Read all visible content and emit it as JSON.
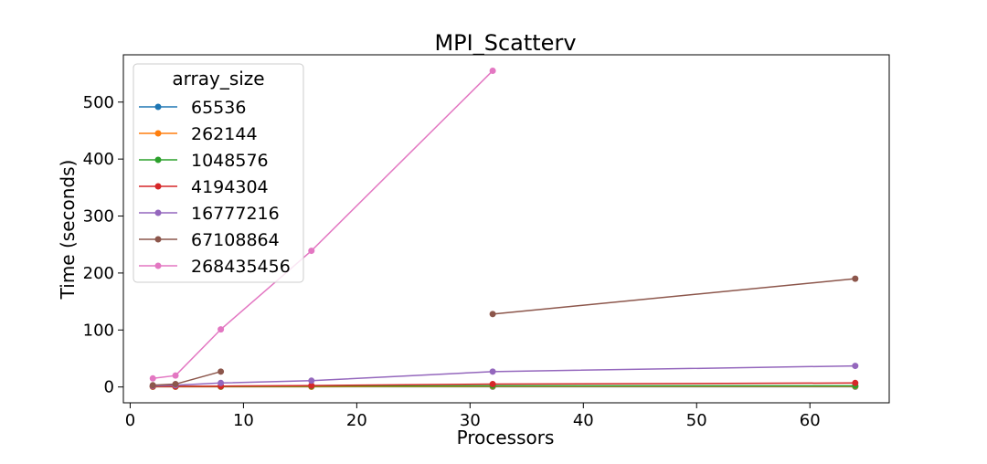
{
  "chart_data": {
    "type": "line",
    "title": "MPI_Scatterv",
    "xlabel": "Processors",
    "ylabel": "Time (seconds)",
    "xlim": [
      -0.6,
      67
    ],
    "ylim": [
      -27.8,
      583
    ],
    "xticks": [
      0,
      10,
      20,
      30,
      40,
      50,
      60
    ],
    "yticks": [
      0,
      100,
      200,
      300,
      400,
      500
    ],
    "grid": false,
    "legend": {
      "title": "array_size",
      "placement": "top-left"
    },
    "series": [
      {
        "name": "65536",
        "color": "#1f77b4",
        "points": [
          [
            2,
            0.5
          ],
          [
            4,
            0.5
          ],
          [
            8,
            0.5
          ],
          [
            16,
            0.5
          ],
          [
            32,
            0.5
          ],
          [
            64,
            0.5
          ]
        ]
      },
      {
        "name": "262144",
        "color": "#ff7f0e",
        "points": [
          [
            2,
            0.5
          ],
          [
            4,
            0.5
          ],
          [
            8,
            0.5
          ],
          [
            16,
            0.5
          ],
          [
            32,
            1
          ],
          [
            64,
            1
          ]
        ]
      },
      {
        "name": "1048576",
        "color": "#2ca02c",
        "points": [
          [
            2,
            1
          ],
          [
            4,
            1
          ],
          [
            8,
            1
          ],
          [
            16,
            1.5
          ],
          [
            32,
            2
          ],
          [
            64,
            2
          ]
        ]
      },
      {
        "name": "4194304",
        "color": "#d62728",
        "points": [
          [
            2,
            1
          ],
          [
            4,
            1
          ],
          [
            8,
            1.5
          ],
          [
            16,
            2.5
          ],
          [
            32,
            5
          ],
          [
            64,
            7
          ]
        ]
      },
      {
        "name": "16777216",
        "color": "#9467bd",
        "points": [
          [
            2,
            2
          ],
          [
            4,
            3
          ],
          [
            8,
            7
          ],
          [
            16,
            11
          ],
          [
            32,
            27
          ],
          [
            64,
            37
          ]
        ]
      },
      {
        "name": "67108864",
        "color": "#8c564b",
        "points": [
          [
            2,
            3
          ],
          [
            4,
            5
          ],
          [
            8,
            27
          ],
          [
            32,
            128
          ],
          [
            64,
            190
          ]
        ]
      },
      {
        "name": "268435456",
        "color": "#e377c2",
        "points": [
          [
            2,
            15
          ],
          [
            4,
            20
          ],
          [
            8,
            101
          ],
          [
            16,
            239
          ],
          [
            32,
            555
          ]
        ]
      }
    ]
  }
}
